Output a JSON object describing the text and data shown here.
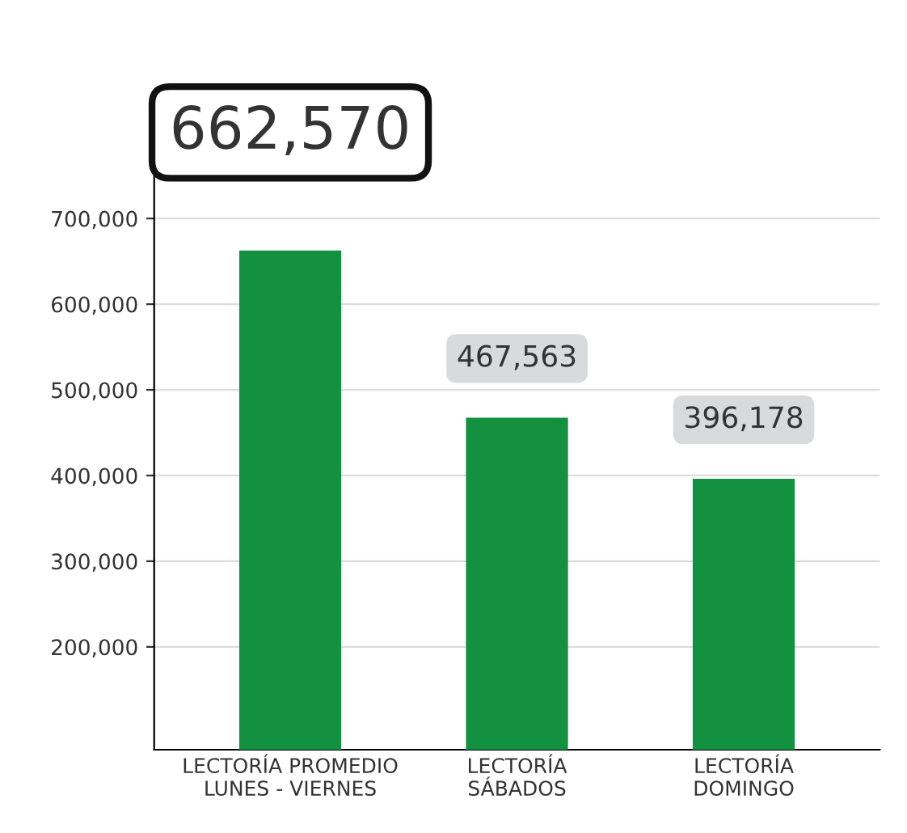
{
  "chart_data": {
    "type": "bar",
    "categories": [
      "LECTORÍA PROMEDIO\nLUNES - VIERNES",
      "LECTORÍA\nSÁBADOS",
      "LECTORÍA\nDOMINGO"
    ],
    "values": [
      662570,
      467563,
      396178
    ],
    "value_labels": [
      "662,570",
      "467,563",
      "396,178"
    ],
    "color": "#139040",
    "ylim": [
      80000,
      780000
    ],
    "yticks": [
      {
        "value": 200000,
        "label": "200,000"
      },
      {
        "value": 300000,
        "label": "300,000"
      },
      {
        "value": 400000,
        "label": "400,000"
      },
      {
        "value": 500000,
        "label": "500,000"
      },
      {
        "value": 600000,
        "label": "600,000"
      },
      {
        "value": 700000,
        "label": "700,000"
      }
    ],
    "grid": "y"
  }
}
